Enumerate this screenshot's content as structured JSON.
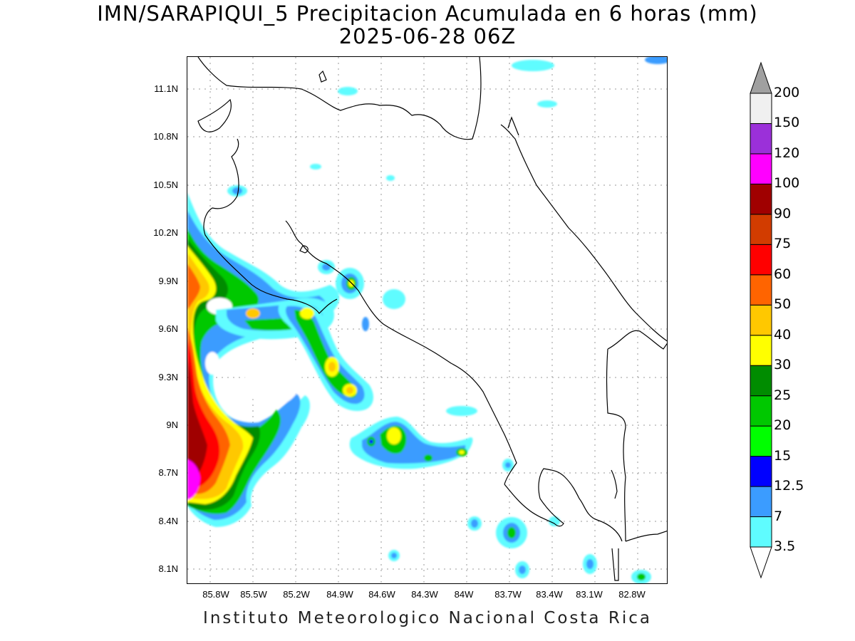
{
  "title": {
    "line1": "IMN/SARAPIQUI_5 Precipitacion Acumulada en 6 horas (mm)",
    "line2": "2025-06-28 06Z"
  },
  "footer": "Instituto Meteorologico Nacional Costa Rica",
  "map": {
    "lat_ticks": [
      "11.1N",
      "10.8N",
      "10.5N",
      "10.2N",
      "9.9N",
      "9.6N",
      "9.3N",
      "9N",
      "8.7N",
      "8.4N",
      "8.1N"
    ],
    "lon_ticks": [
      "85.8W",
      "85.5W",
      "85.2W",
      "84.9W",
      "84.6W",
      "84.3W",
      "84W",
      "83.7W",
      "83.4W",
      "83.1W",
      "82.8W"
    ],
    "grid": "dotted"
  },
  "legend": {
    "levels": [
      "3.5",
      "7",
      "12.5",
      "15",
      "20",
      "25",
      "30",
      "40",
      "50",
      "60",
      "75",
      "90",
      "100",
      "120",
      "150",
      "200"
    ],
    "colors": [
      "#5ffcff",
      "#3b9cff",
      "#0000ff",
      "#00ff00",
      "#00c800",
      "#008c00",
      "#ffff00",
      "#ffc800",
      "#ff6400",
      "#ff0000",
      "#d23c00",
      "#a00000",
      "#ff00ff",
      "#9b30d9",
      "#f0f0f0"
    ]
  }
}
